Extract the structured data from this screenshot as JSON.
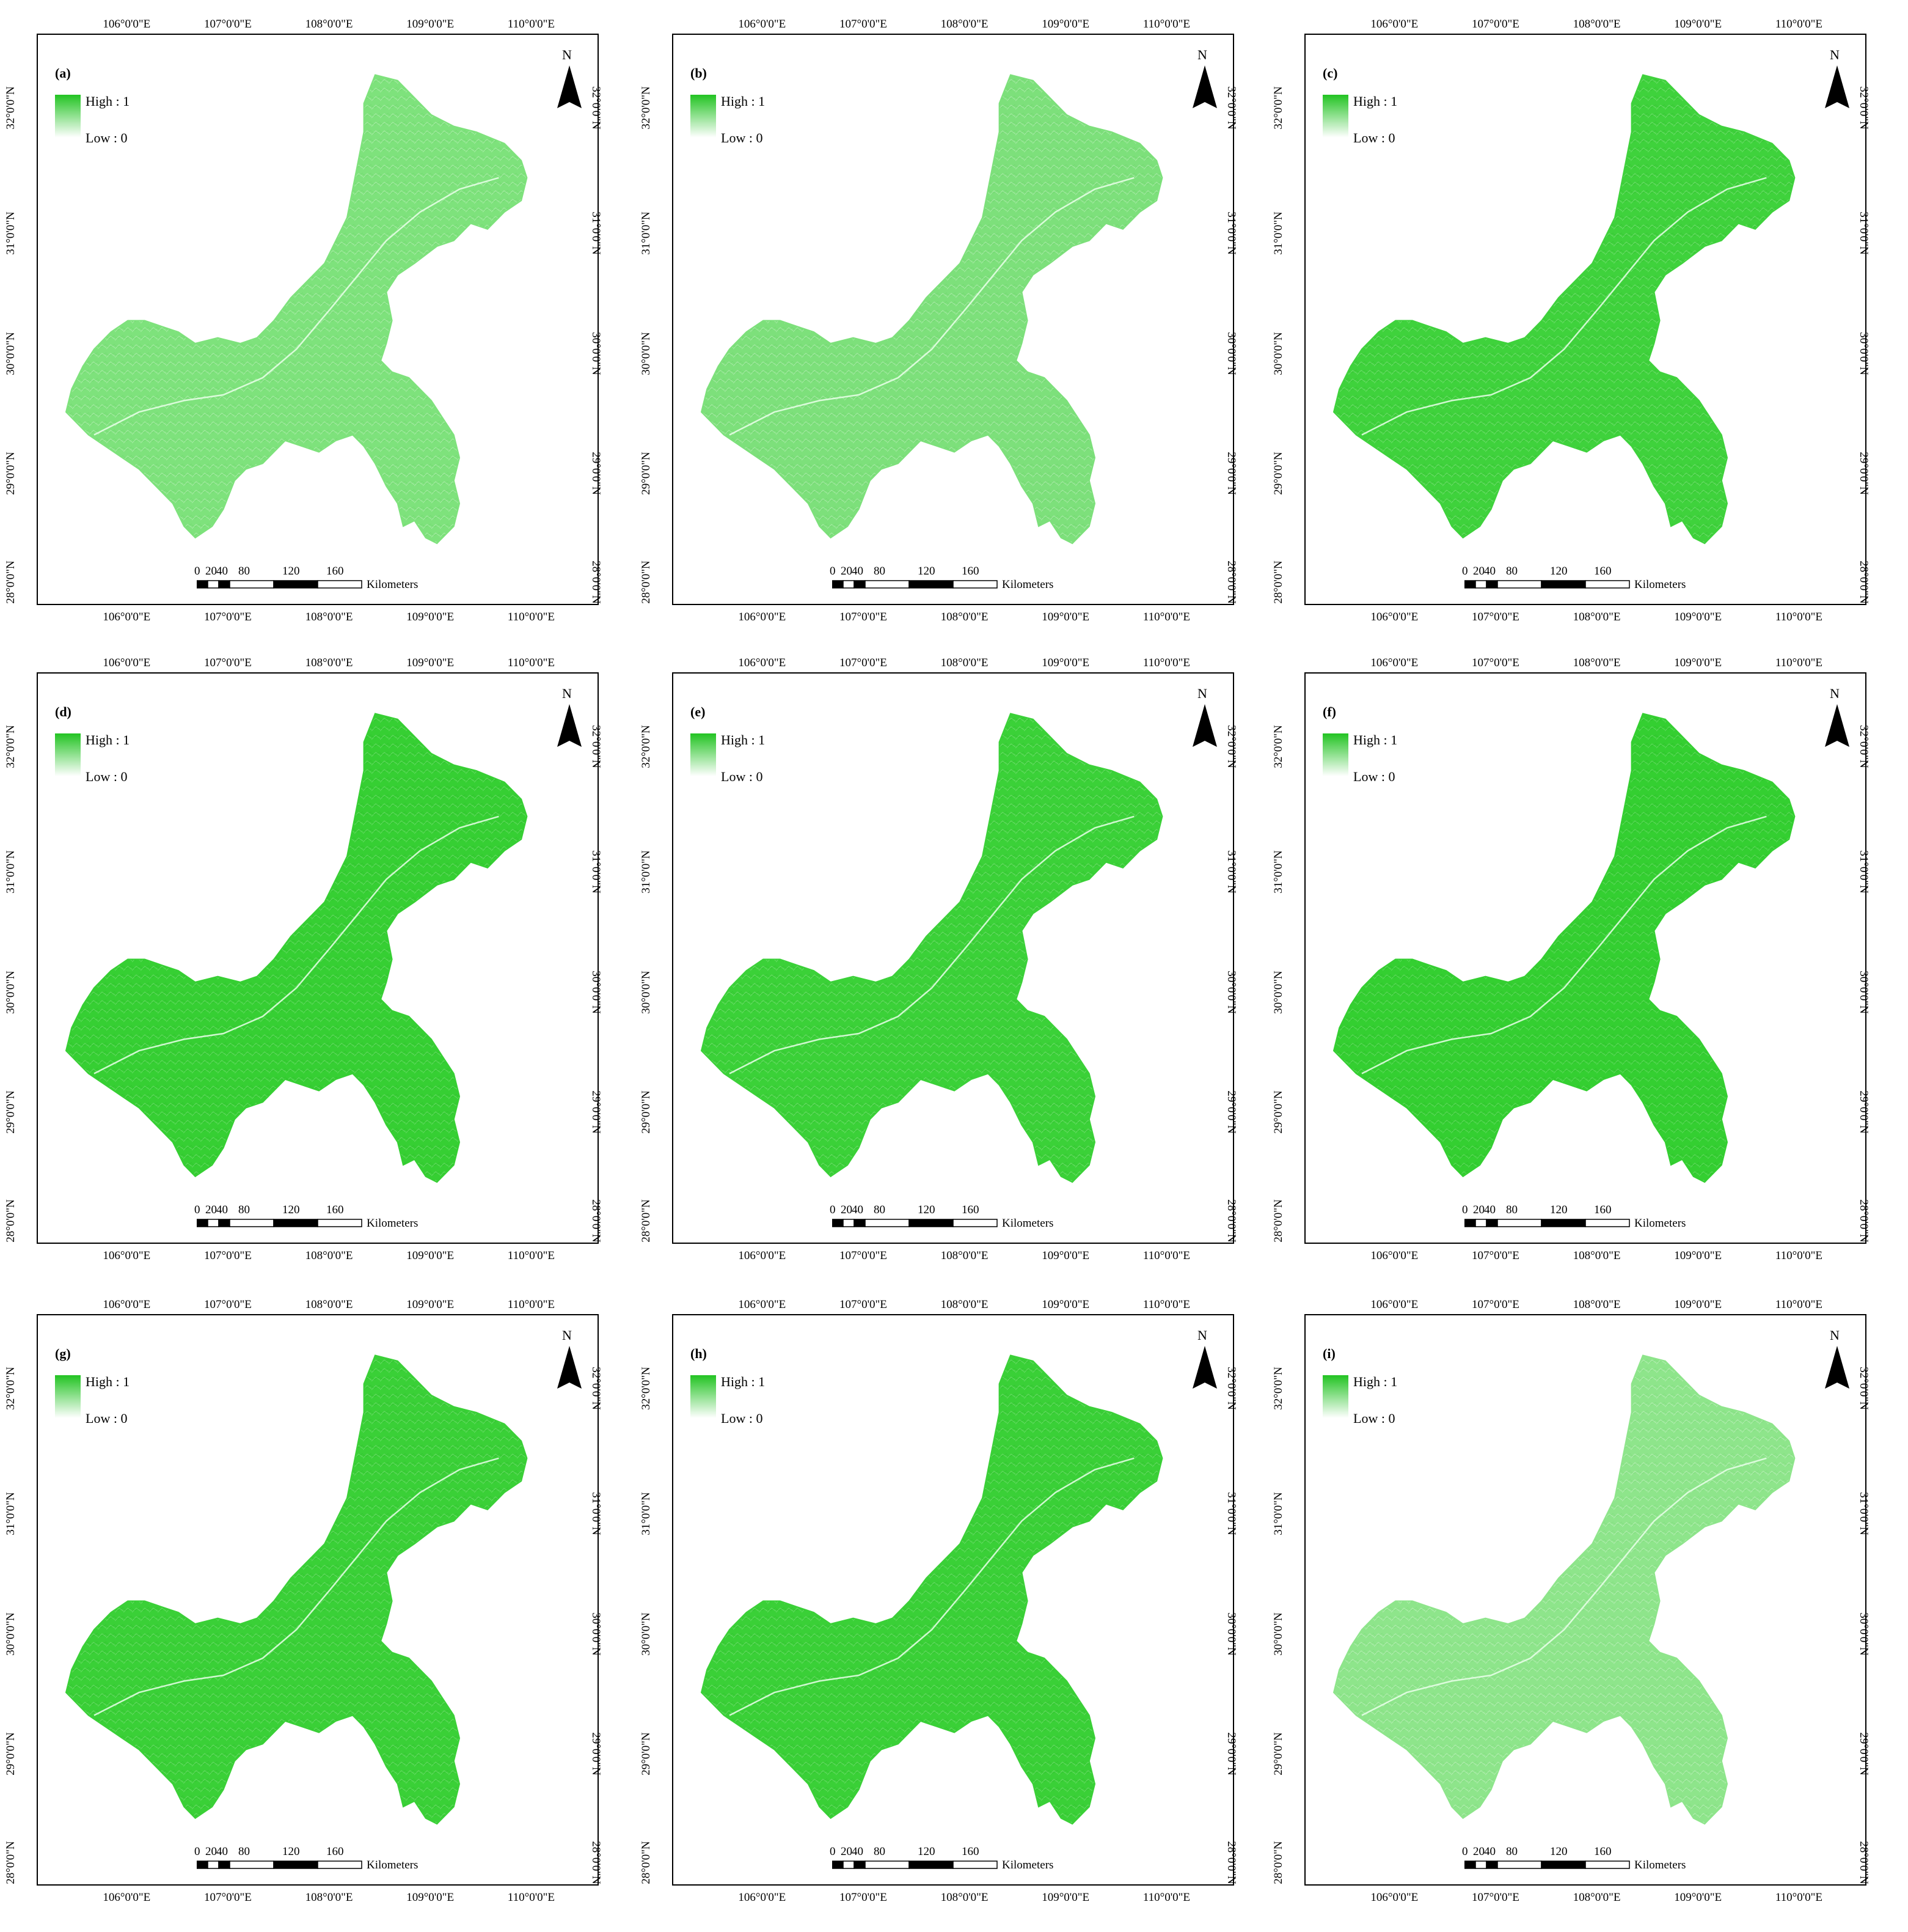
{
  "figure": {
    "panels": [
      {
        "label": "(a)",
        "fill": "#7ee27c",
        "intensity": 0.35
      },
      {
        "label": "(b)",
        "fill": "#7de07b",
        "intensity": 0.33
      },
      {
        "label": "(c)",
        "fill": "#3fd23c",
        "intensity": 0.7
      },
      {
        "label": "(d)",
        "fill": "#36cf33",
        "intensity": 0.75
      },
      {
        "label": "(e)",
        "fill": "#3bd138",
        "intensity": 0.72
      },
      {
        "label": "(f)",
        "fill": "#34cf31",
        "intensity": 0.78
      },
      {
        "label": "(g)",
        "fill": "#3ad037",
        "intensity": 0.74
      },
      {
        "label": "(h)",
        "fill": "#3ad037",
        "intensity": 0.73
      },
      {
        "label": "(i)",
        "fill": "#8ee58b",
        "intensity": 0.3
      }
    ],
    "lon_ticks": [
      "106°0'0\"E",
      "107°0'0\"E",
      "108°0'0\"E",
      "109°0'0\"E",
      "110°0'0\"E"
    ],
    "lat_ticks": [
      "32°0'0\"N",
      "31°0'0\"N",
      "30°0'0\"N",
      "29°0'0\"N",
      "28°0'0\"N"
    ],
    "legend": {
      "high": "High : 1",
      "low": "Low : 0"
    },
    "north": "N",
    "scale": {
      "ticks": [
        "0",
        "20",
        "40",
        "80",
        "120",
        "160"
      ],
      "unit": "Kilometers"
    },
    "colors": {
      "high": "#22c322",
      "low": "#ffffff",
      "frame": "#000000"
    }
  }
}
